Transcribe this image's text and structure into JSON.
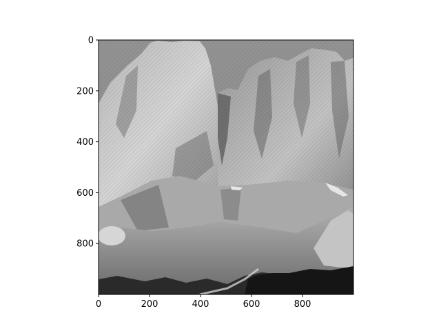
{
  "figure": {
    "kind": "grayscale image display with pixel axes",
    "subject": "rocky mountain peaks against sky with forest and scree at base"
  },
  "axes": {
    "x_ticks": [
      "0",
      "200",
      "400",
      "600",
      "800"
    ],
    "y_ticks": [
      "0",
      "200",
      "400",
      "600",
      "800"
    ],
    "x_tick_values": [
      0,
      200,
      400,
      600,
      800
    ],
    "y_tick_values": [
      0,
      200,
      400,
      600,
      800
    ],
    "extent": [
      0,
      1000
    ]
  },
  "colors": {
    "sky": "#8a8a8a",
    "rock_light": "#d8d8d8",
    "rock_mid": "#a6a6a6",
    "rock_dark": "#5a5a5a",
    "forest": "#1e1e1e",
    "frame": "#000000"
  }
}
